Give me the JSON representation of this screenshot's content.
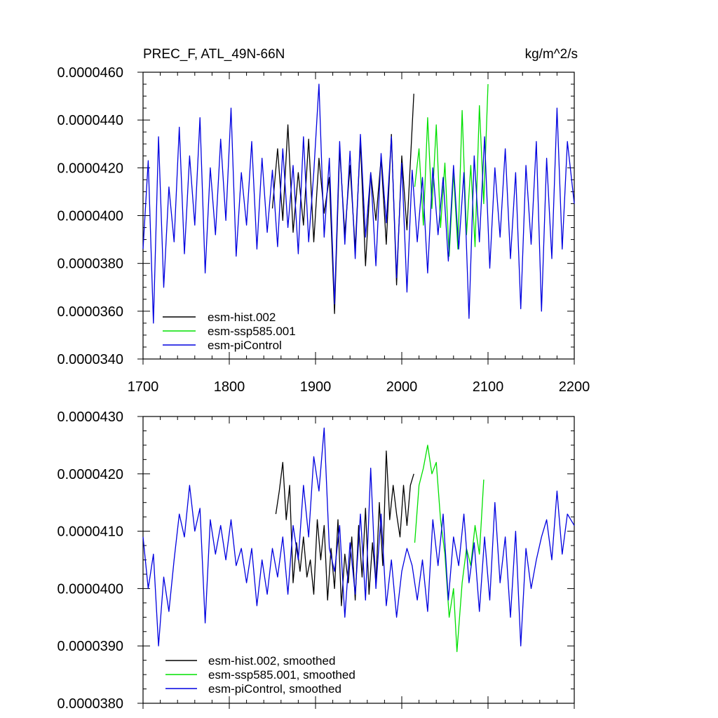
{
  "chart_data": [
    {
      "type": "line",
      "title": "PREC_F, ATL_49N-66N",
      "units": "kg/m^2/s",
      "xlim": [
        1700,
        2200
      ],
      "ylim": [
        3.4e-05,
        4.6e-05
      ],
      "x_ticks": [
        1700,
        1800,
        1900,
        2000,
        2100,
        2200
      ],
      "x_tick_labels": [
        "1700",
        "1800",
        "1900",
        "2000",
        "2100",
        "2200"
      ],
      "y_ticks": [
        3.4e-05,
        3.6e-05,
        3.8e-05,
        4e-05,
        4.2e-05,
        4.4e-05,
        4.6e-05
      ],
      "y_tick_labels": [
        "0.0000340",
        "0.0000360",
        "0.0000380",
        "0.0000400",
        "0.0000420",
        "0.0000440",
        "0.0000460"
      ],
      "grid": false,
      "legend_position": "bottom-left",
      "series": [
        {
          "name": "esm-hist.002",
          "color": "#000000",
          "x": [
            1850,
            1856,
            1862,
            1868,
            1874,
            1880,
            1886,
            1892,
            1898,
            1904,
            1910,
            1916,
            1922,
            1928,
            1934,
            1940,
            1946,
            1952,
            1958,
            1964,
            1970,
            1976,
            1982,
            1988,
            1994,
            2000,
            2006,
            2014
          ],
          "y": [
            4.03e-05,
            4.28e-05,
            3.98e-05,
            4.38e-05,
            3.93e-05,
            4.18e-05,
            3.96e-05,
            4.32e-05,
            3.89e-05,
            4.24e-05,
            4.01e-05,
            4.16e-05,
            3.59e-05,
            4.28e-05,
            3.92e-05,
            4.21e-05,
            3.86e-05,
            4.31e-05,
            3.79e-05,
            4.18e-05,
            3.98e-05,
            4.24e-05,
            3.88e-05,
            4.34e-05,
            3.71e-05,
            4.25e-05,
            3.94e-05,
            4.51e-05
          ]
        },
        {
          "name": "esm-ssp585.001",
          "color": "#00e000",
          "x": [
            2015,
            2020,
            2025,
            2030,
            2035,
            2040,
            2045,
            2050,
            2055,
            2060,
            2065,
            2070,
            2075,
            2080,
            2085,
            2090,
            2095,
            2100
          ],
          "y": [
            4.12e-05,
            4.28e-05,
            3.96e-05,
            4.41e-05,
            4.03e-05,
            4.38e-05,
            3.95e-05,
            4.22e-05,
            3.83e-05,
            4.18e-05,
            3.86e-05,
            4.44e-05,
            3.92e-05,
            4.21e-05,
            3.87e-05,
            4.46e-05,
            4.05e-05,
            4.55e-05
          ]
        },
        {
          "name": "esm-piControl",
          "color": "#0000e0",
          "x": [
            1700,
            1706,
            1712,
            1718,
            1724,
            1730,
            1736,
            1742,
            1748,
            1754,
            1760,
            1766,
            1772,
            1778,
            1784,
            1790,
            1796,
            1802,
            1808,
            1814,
            1820,
            1826,
            1832,
            1838,
            1844,
            1850,
            1856,
            1862,
            1868,
            1874,
            1880,
            1886,
            1892,
            1898,
            1904,
            1910,
            1916,
            1922,
            1928,
            1934,
            1940,
            1946,
            1952,
            1958,
            1964,
            1970,
            1976,
            1982,
            1988,
            1994,
            2000,
            2006,
            2012,
            2018,
            2024,
            2030,
            2036,
            2042,
            2048,
            2054,
            2060,
            2066,
            2072,
            2078,
            2084,
            2090,
            2096,
            2102,
            2108,
            2114,
            2120,
            2126,
            2132,
            2138,
            2144,
            2150,
            2156,
            2162,
            2168,
            2174,
            2180,
            2186,
            2192,
            2200
          ],
          "y": [
            3.86e-05,
            4.23e-05,
            3.55e-05,
            4.33e-05,
            3.7e-05,
            4.12e-05,
            3.89e-05,
            4.37e-05,
            3.84e-05,
            4.25e-05,
            3.96e-05,
            4.41e-05,
            3.76e-05,
            4.2e-05,
            3.92e-05,
            4.32e-05,
            3.98e-05,
            4.45e-05,
            3.83e-05,
            4.18e-05,
            3.96e-05,
            4.31e-05,
            3.86e-05,
            4.24e-05,
            3.93e-05,
            4.19e-05,
            3.87e-05,
            4.28e-05,
            3.95e-05,
            4.21e-05,
            3.84e-05,
            4.33e-05,
            3.89e-05,
            4.18e-05,
            4.55e-05,
            3.91e-05,
            4.24e-05,
            3.63e-05,
            4.31e-05,
            3.88e-05,
            4.27e-05,
            3.82e-05,
            4.34e-05,
            3.91e-05,
            4.18e-05,
            3.79e-05,
            4.26e-05,
            3.97e-05,
            4.33e-05,
            3.74e-05,
            4.22e-05,
            3.68e-05,
            4.19e-05,
            3.89e-05,
            4.16e-05,
            3.76e-05,
            4.2e-05,
            3.92e-05,
            4.16e-05,
            3.81e-05,
            4.21e-05,
            3.86e-05,
            4.18e-05,
            3.57e-05,
            4.25e-05,
            3.89e-05,
            4.33e-05,
            3.78e-05,
            4.2e-05,
            3.91e-05,
            4.28e-05,
            3.82e-05,
            4.18e-05,
            3.61e-05,
            4.21e-05,
            3.88e-05,
            4.31e-05,
            3.6e-05,
            4.24e-05,
            3.82e-05,
            4.45e-05,
            3.86e-05,
            4.31e-05,
            4.05e-05
          ]
        }
      ]
    },
    {
      "type": "line",
      "xlim": [
        1700,
        2200
      ],
      "ylim": [
        3.8e-05,
        4.3e-05
      ],
      "y_ticks": [
        3.8e-05,
        3.9e-05,
        4e-05,
        4.1e-05,
        4.2e-05,
        4.3e-05
      ],
      "y_tick_labels": [
        "0.0000380",
        "0.0000390",
        "0.0000400",
        "0.0000410",
        "0.0000420",
        "0.0000430"
      ],
      "grid": false,
      "legend_position": "bottom-left",
      "series": [
        {
          "name": "esm-hist.002, smoothed",
          "color": "#000000",
          "x": [
            1854,
            1858,
            1862,
            1866,
            1870,
            1874,
            1878,
            1882,
            1886,
            1890,
            1894,
            1898,
            1902,
            1906,
            1910,
            1914,
            1918,
            1922,
            1926,
            1930,
            1934,
            1938,
            1942,
            1946,
            1950,
            1954,
            1958,
            1962,
            1966,
            1970,
            1974,
            1978,
            1982,
            1986,
            1990,
            1994,
            1998,
            2002,
            2006,
            2010,
            2014
          ],
          "y": [
            4.13e-05,
            4.17e-05,
            4.22e-05,
            4.12e-05,
            4.18e-05,
            4.01e-05,
            4.08e-05,
            4.03e-05,
            4.09e-05,
            4.02e-05,
            4.05e-05,
            3.99e-05,
            4.12e-05,
            4.05e-05,
            4.11e-05,
            3.98e-05,
            4.07e-05,
            4e-05,
            4.12e-05,
            3.97e-05,
            4.06e-05,
            4.01e-05,
            4.09e-05,
            3.98e-05,
            4.11e-05,
            4.02e-05,
            4.14e-05,
            3.99e-05,
            4.08e-05,
            4.01e-05,
            4.15e-05,
            4.04e-05,
            4.24e-05,
            4.12e-05,
            4.18e-05,
            4.13e-05,
            4.09e-05,
            4.18e-05,
            4.11e-05,
            4.18e-05,
            4.2e-05
          ]
        },
        {
          "name": "esm-ssp585.001, smoothed",
          "color": "#00e000",
          "x": [
            2015,
            2020,
            2025,
            2030,
            2035,
            2040,
            2045,
            2050,
            2055,
            2060,
            2064,
            2070,
            2075,
            2080,
            2085,
            2090,
            2095
          ],
          "y": [
            4.08e-05,
            4.18e-05,
            4.21e-05,
            4.25e-05,
            4.2e-05,
            4.22e-05,
            4.12e-05,
            4.06e-05,
            3.95e-05,
            4e-05,
            3.89e-05,
            4.01e-05,
            4.07e-05,
            4.04e-05,
            4.11e-05,
            4.06e-05,
            4.19e-05
          ]
        },
        {
          "name": "esm-piControl, smoothed",
          "color": "#0000e0",
          "x": [
            1700,
            1706,
            1712,
            1718,
            1724,
            1730,
            1736,
            1742,
            1748,
            1754,
            1760,
            1766,
            1772,
            1778,
            1784,
            1790,
            1796,
            1802,
            1808,
            1814,
            1820,
            1826,
            1832,
            1838,
            1844,
            1850,
            1856,
            1862,
            1868,
            1874,
            1880,
            1886,
            1892,
            1898,
            1904,
            1910,
            1916,
            1922,
            1928,
            1934,
            1940,
            1946,
            1952,
            1958,
            1964,
            1970,
            1976,
            1982,
            1988,
            1994,
            2000,
            2006,
            2012,
            2018,
            2024,
            2030,
            2036,
            2042,
            2048,
            2054,
            2060,
            2066,
            2072,
            2078,
            2084,
            2090,
            2096,
            2102,
            2108,
            2114,
            2120,
            2126,
            2132,
            2138,
            2144,
            2150,
            2156,
            2162,
            2168,
            2174,
            2180,
            2186,
            2192,
            2200
          ],
          "y": [
            4.09e-05,
            4e-05,
            4.06e-05,
            3.9e-05,
            4.02e-05,
            3.96e-05,
            4.05e-05,
            4.13e-05,
            4.09e-05,
            4.18e-05,
            4.1e-05,
            4.14e-05,
            3.94e-05,
            4.12e-05,
            4.06e-05,
            4.11e-05,
            4.05e-05,
            4.12e-05,
            4.04e-05,
            4.07e-05,
            4.01e-05,
            4.07e-05,
            3.97e-05,
            4.05e-05,
            3.99e-05,
            4.07e-05,
            4.02e-05,
            4.09e-05,
            3.99e-05,
            4.11e-05,
            4.05e-05,
            4.18e-05,
            4.09e-05,
            4.23e-05,
            4.17e-05,
            4.28e-05,
            4.07e-05,
            4.03e-05,
            4.11e-05,
            3.95e-05,
            4.08e-05,
            3.99e-05,
            4.13e-05,
            3.98e-05,
            4.21e-05,
            4e-05,
            4.13e-05,
            3.97e-05,
            4.05e-05,
            3.95e-05,
            4.03e-05,
            4.07e-05,
            4.04e-05,
            3.98e-05,
            4.05e-05,
            3.96e-05,
            4.12e-05,
            4.04e-05,
            4.13e-05,
            3.98e-05,
            4.09e-05,
            4.04e-05,
            4.13e-05,
            4.01e-05,
            4.08e-05,
            3.96e-05,
            4.09e-05,
            3.98e-05,
            4.15e-05,
            4.01e-05,
            4.09e-05,
            3.95e-05,
            4.1e-05,
            3.9e-05,
            4.07e-05,
            4e-05,
            4.05e-05,
            4.09e-05,
            4.12e-05,
            4.05e-05,
            4.17e-05,
            4.06e-05,
            4.13e-05,
            4.11e-05
          ]
        }
      ]
    }
  ]
}
